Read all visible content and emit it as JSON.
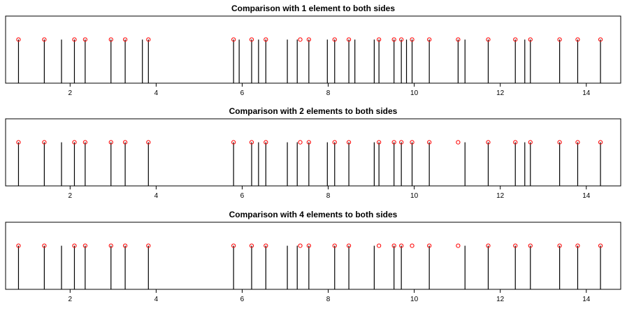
{
  "chart_data": [
    {
      "type": "spike",
      "title": "Comparison with 1 element to both sides",
      "xlim": [
        0.5,
        14.8
      ],
      "ylim": [
        0,
        1
      ],
      "xticks": [
        2,
        4,
        6,
        8,
        10,
        12,
        14
      ],
      "xtick_labels": [
        "2",
        "4",
        "6",
        "8",
        "10",
        "12",
        "14"
      ],
      "spike_height": 0.65,
      "spikes_x": [
        0.8,
        1.4,
        1.8,
        2.1,
        2.35,
        2.95,
        3.28,
        3.68,
        3.82,
        5.8,
        5.93,
        6.22,
        6.38,
        6.55,
        7.05,
        7.28,
        7.55,
        7.98,
        8.15,
        8.48,
        8.62,
        9.07,
        9.18,
        9.53,
        9.7,
        9.82,
        9.95,
        10.35,
        11.02,
        11.18,
        11.72,
        12.35,
        12.57,
        12.7,
        13.38,
        13.8,
        14.33
      ],
      "peak_markers_x": [
        0.8,
        1.4,
        2.1,
        2.35,
        2.95,
        3.28,
        3.82,
        5.8,
        6.22,
        6.55,
        7.35,
        7.55,
        8.15,
        8.48,
        9.18,
        9.53,
        9.7,
        9.95,
        10.35,
        11.02,
        11.72,
        12.35,
        12.7,
        13.38,
        13.8,
        14.33
      ],
      "marker_color": "#ff0000"
    },
    {
      "type": "spike",
      "title": "Comparison with 2 elements to both sides",
      "xlim": [
        0.5,
        14.8
      ],
      "ylim": [
        0,
        1
      ],
      "xticks": [
        2,
        4,
        6,
        8,
        10,
        12,
        14
      ],
      "xtick_labels": [
        "2",
        "4",
        "6",
        "8",
        "10",
        "12",
        "14"
      ],
      "spike_height": 0.65,
      "spikes_x": [
        0.8,
        1.4,
        1.8,
        2.1,
        2.35,
        2.95,
        3.28,
        3.82,
        5.8,
        6.22,
        6.38,
        6.55,
        7.05,
        7.28,
        7.55,
        7.98,
        8.15,
        8.48,
        9.07,
        9.18,
        9.53,
        9.7,
        9.95,
        10.35,
        11.18,
        11.72,
        12.35,
        12.57,
        12.7,
        13.38,
        13.8,
        14.33
      ],
      "peak_markers_x": [
        0.8,
        1.4,
        2.1,
        2.35,
        2.95,
        3.28,
        3.82,
        5.8,
        6.22,
        6.55,
        7.35,
        7.55,
        8.15,
        8.48,
        9.18,
        9.53,
        9.7,
        9.95,
        10.35,
        11.02,
        11.72,
        12.35,
        12.7,
        13.38,
        13.8,
        14.33
      ],
      "marker_color": "#ff0000"
    },
    {
      "type": "spike",
      "title": "Comparison with 4 elements to both sides",
      "xlim": [
        0.5,
        14.8
      ],
      "ylim": [
        0,
        1
      ],
      "xticks": [
        2,
        4,
        6,
        8,
        10,
        12,
        14
      ],
      "xtick_labels": [
        "2",
        "4",
        "6",
        "8",
        "10",
        "12",
        "14"
      ],
      "spike_height": 0.65,
      "spikes_x": [
        0.8,
        1.4,
        1.8,
        2.1,
        2.35,
        2.95,
        3.28,
        3.82,
        5.8,
        6.22,
        6.55,
        7.05,
        7.28,
        7.55,
        8.15,
        8.48,
        9.07,
        9.53,
        9.7,
        10.35,
        11.18,
        11.72,
        12.35,
        12.7,
        13.38,
        13.8,
        14.33
      ],
      "peak_markers_x": [
        0.8,
        1.4,
        2.1,
        2.35,
        2.95,
        3.28,
        3.82,
        5.8,
        6.22,
        6.55,
        7.35,
        7.55,
        8.15,
        8.48,
        9.18,
        9.53,
        9.7,
        9.95,
        10.35,
        11.02,
        11.72,
        12.35,
        12.7,
        13.38,
        13.8,
        14.33
      ],
      "marker_color": "#ff0000"
    }
  ]
}
